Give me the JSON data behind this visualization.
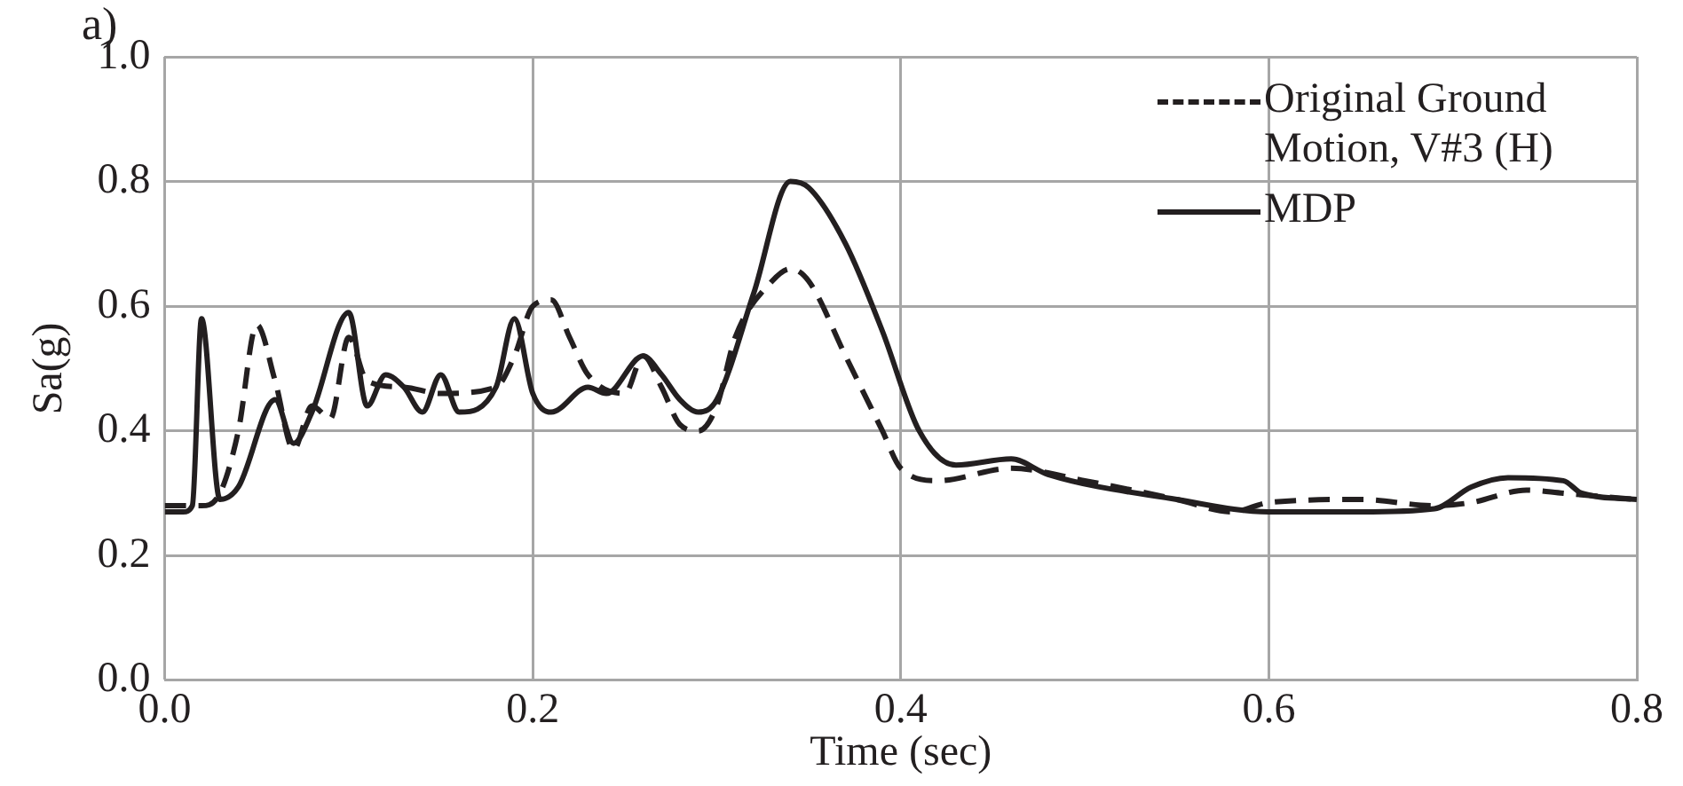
{
  "chart_data": {
    "type": "line",
    "xlabel": "Time (sec)",
    "ylabel": "Sa(g)",
    "annotations": [
      "a)"
    ],
    "xlim": [
      0,
      0.8
    ],
    "ylim": [
      0,
      1
    ],
    "xticks": [
      {
        "value": 0,
        "label": "0.0"
      },
      {
        "value": 0.2,
        "label": "0.2"
      },
      {
        "value": 0.4,
        "label": "0.4"
      },
      {
        "value": 0.6,
        "label": "0.6"
      },
      {
        "value": 0.8,
        "label": "0.8"
      }
    ],
    "yticks": [
      {
        "value": 0,
        "label": "0.0"
      },
      {
        "value": 0.2,
        "label": "0.2"
      },
      {
        "value": 0.4,
        "label": "0.4"
      },
      {
        "value": 0.6,
        "label": "0.6"
      },
      {
        "value": 0.8,
        "label": "0.8"
      },
      {
        "value": 1,
        "label": "1.0"
      }
    ],
    "grid": true,
    "legend": "top right",
    "marker": "none",
    "series": [
      {
        "name": "Original Ground Motion,  V#3 (H)",
        "color": "#231f20",
        "line_style": "dashed",
        "x": [
          0,
          0.02,
          0.03,
          0.04,
          0.05,
          0.06,
          0.07,
          0.08,
          0.09,
          0.1,
          0.11,
          0.13,
          0.15,
          0.18,
          0.19,
          0.2,
          0.21,
          0.22,
          0.23,
          0.25,
          0.26,
          0.27,
          0.28,
          0.29,
          0.3,
          0.31,
          0.33,
          0.34,
          0.35,
          0.37,
          0.39,
          0.4,
          0.42,
          0.46,
          0.5,
          0.55,
          0.58,
          0.6,
          0.65,
          0.69,
          0.71,
          0.74,
          0.76,
          0.8
        ],
        "values": [
          0.28,
          0.28,
          0.3,
          0.4,
          0.57,
          0.48,
          0.37,
          0.44,
          0.42,
          0.55,
          0.48,
          0.47,
          0.46,
          0.47,
          0.52,
          0.6,
          0.61,
          0.55,
          0.49,
          0.46,
          0.52,
          0.47,
          0.41,
          0.4,
          0.44,
          0.55,
          0.64,
          0.66,
          0.64,
          0.52,
          0.4,
          0.34,
          0.32,
          0.34,
          0.32,
          0.29,
          0.27,
          0.285,
          0.29,
          0.28,
          0.285,
          0.305,
          0.3,
          0.29
        ]
      },
      {
        "name": "MDP",
        "color": "#231f20",
        "line_style": "solid",
        "x": [
          0,
          0.01,
          0.015,
          0.02,
          0.03,
          0.04,
          0.06,
          0.07,
          0.08,
          0.1,
          0.11,
          0.12,
          0.13,
          0.14,
          0.15,
          0.16,
          0.18,
          0.19,
          0.2,
          0.21,
          0.23,
          0.24,
          0.26,
          0.27,
          0.28,
          0.29,
          0.3,
          0.32,
          0.34,
          0.35,
          0.37,
          0.39,
          0.41,
          0.43,
          0.46,
          0.48,
          0.55,
          0.6,
          0.65,
          0.69,
          0.71,
          0.73,
          0.76,
          0.77,
          0.8
        ],
        "values": [
          0.27,
          0.27,
          0.28,
          0.58,
          0.29,
          0.31,
          0.45,
          0.38,
          0.43,
          0.59,
          0.44,
          0.49,
          0.47,
          0.43,
          0.49,
          0.43,
          0.47,
          0.58,
          0.46,
          0.43,
          0.47,
          0.46,
          0.52,
          0.49,
          0.45,
          0.43,
          0.45,
          0.62,
          0.8,
          0.79,
          0.7,
          0.56,
          0.4,
          0.345,
          0.355,
          0.33,
          0.29,
          0.27,
          0.27,
          0.275,
          0.31,
          0.325,
          0.32,
          0.3,
          0.29
        ]
      }
    ]
  }
}
